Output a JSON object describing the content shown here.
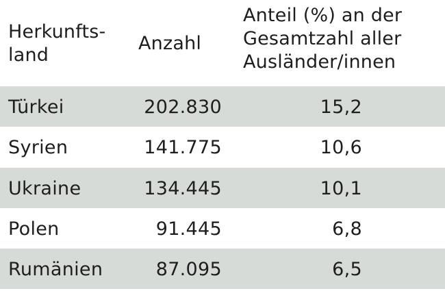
{
  "table": {
    "headers": {
      "country": "Herkunfts-\nland",
      "count": "Anzahl",
      "share": "Anteil (%) an der\nGesamtzahl aller\nAusländer/innen"
    },
    "rows": [
      {
        "country": "Türkei",
        "count": "202.830",
        "share": "15,2"
      },
      {
        "country": "Syrien",
        "count": "141.775",
        "share": "10,6"
      },
      {
        "country": "Ukraine",
        "count": "134.445",
        "share": "10,1"
      },
      {
        "country": "Polen",
        "count": "91.445",
        "share": "6,8"
      },
      {
        "country": "Rumänien",
        "count": "87.095",
        "share": "6,5"
      }
    ],
    "colors": {
      "row_shade": "#d7dbd8",
      "text": "#1e1e1e"
    }
  }
}
